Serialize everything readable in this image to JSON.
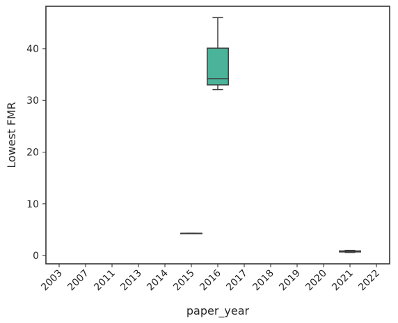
{
  "chart_data": {
    "type": "box",
    "title": "",
    "xlabel": "paper_year",
    "ylabel": "Lowest FMR",
    "categories": [
      "2003",
      "2007",
      "2011",
      "2013",
      "2014",
      "2015",
      "2016",
      "2017",
      "2018",
      "2019",
      "2020",
      "2021",
      "2022"
    ],
    "ylim": [
      -1.6,
      48.2
    ],
    "yticks": [
      0,
      10,
      20,
      30,
      40
    ],
    "grid": false,
    "boxes": [
      {
        "category": "2015",
        "min": 4.3,
        "q1": 4.3,
        "median": 4.3,
        "q3": 4.3,
        "max": 4.3
      },
      {
        "category": "2016",
        "min": 32.1,
        "q1": 33.0,
        "median": 34.2,
        "q3": 40.1,
        "max": 46.0
      },
      {
        "category": "2021",
        "min": 0.6,
        "q1": 0.7,
        "median": 0.8,
        "q3": 0.9,
        "max": 1.0
      }
    ],
    "colors": {
      "2015": "#4c72b0",
      "2016": "#4bb39a",
      "2021": "#3a9aa0",
      "line": "#3d3d3d",
      "spine": "#262626"
    }
  }
}
